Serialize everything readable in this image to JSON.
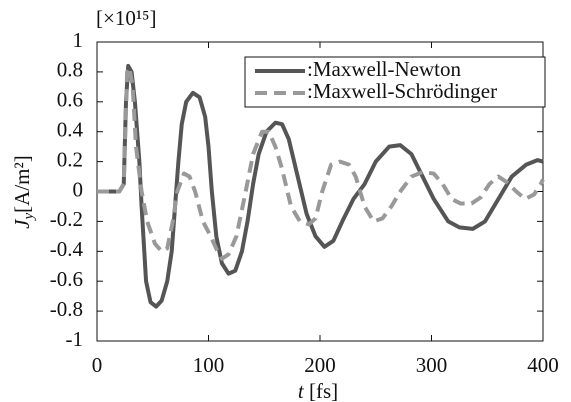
{
  "chart_data": {
    "type": "line",
    "multiplier": "[×10¹⁵]",
    "xlabel": {
      "symbol": "t",
      "unit": "[fs]"
    },
    "ylabel": {
      "symbol": "J",
      "subscript": "y",
      "unit": "[A/m²]"
    },
    "xlim": [
      0,
      400
    ],
    "xticks": [
      0,
      100,
      200,
      300,
      400
    ],
    "ylim": [
      -1,
      1
    ],
    "yticks": [
      -1,
      -0.8,
      -0.6,
      -0.4,
      -0.2,
      0,
      0.2,
      0.4,
      0.6,
      0.8,
      1
    ],
    "legend": "top-right",
    "series": [
      {
        "name": ":Maxwell-Newton",
        "color": "#555555",
        "dash": "solid",
        "x": [
          0,
          20,
          24,
          26,
          28,
          31,
          34,
          38,
          40,
          44,
          48,
          53,
          58,
          63,
          67,
          70,
          73,
          76,
          80,
          86,
          92,
          97,
          100,
          103,
          107,
          112,
          118,
          124,
          130,
          135,
          140,
          145,
          152,
          160,
          166,
          172,
          180,
          188,
          196,
          204,
          212,
          220,
          230,
          240,
          250,
          262,
          272,
          282,
          292,
          302,
          315,
          325,
          337,
          348,
          360,
          372,
          385,
          395,
          400
        ],
        "values": [
          0,
          0,
          0.05,
          0.6,
          0.84,
          0.8,
          0.6,
          0.2,
          -0.1,
          -0.6,
          -0.74,
          -0.77,
          -0.73,
          -0.6,
          -0.4,
          -0.1,
          0.2,
          0.45,
          0.6,
          0.66,
          0.63,
          0.5,
          0.3,
          0,
          -0.3,
          -0.48,
          -0.55,
          -0.53,
          -0.4,
          -0.2,
          0.05,
          0.25,
          0.4,
          0.46,
          0.45,
          0.35,
          0.1,
          -0.15,
          -0.3,
          -0.37,
          -0.33,
          -0.2,
          -0.05,
          0.05,
          0.2,
          0.3,
          0.31,
          0.25,
          0.1,
          -0.05,
          -0.2,
          -0.24,
          -0.25,
          -0.2,
          -0.05,
          0.1,
          0.18,
          0.21,
          0.2
        ]
      },
      {
        "name": ":Maxwell-Schrödinger",
        "color": "#999999",
        "dash": "dashed",
        "x": [
          0,
          20,
          24,
          27,
          29,
          32,
          35,
          40,
          45,
          52,
          58,
          63,
          68,
          72,
          78,
          83,
          88,
          95,
          102,
          108,
          112,
          118,
          125,
          132,
          140,
          148,
          154,
          160,
          166,
          174,
          182,
          190,
          196,
          202,
          210,
          218,
          226,
          232,
          240,
          248,
          256,
          264,
          272,
          282,
          292,
          302,
          310,
          318,
          326,
          336,
          344,
          352,
          360,
          368,
          376,
          384,
          392,
          398,
          400
        ],
        "values": [
          0,
          0,
          0.05,
          0.8,
          0.83,
          0.7,
          0.3,
          0,
          -0.2,
          -0.35,
          -0.4,
          -0.38,
          -0.2,
          0,
          0.12,
          0.1,
          0,
          -0.2,
          -0.3,
          -0.4,
          -0.45,
          -0.42,
          -0.3,
          -0.05,
          0.25,
          0.4,
          0.4,
          0.3,
          0.15,
          -0.1,
          -0.2,
          -0.22,
          -0.18,
          0,
          0.18,
          0.2,
          0.18,
          0.1,
          -0.1,
          -0.2,
          -0.18,
          -0.1,
          0,
          0.1,
          0.13,
          0.12,
          0.05,
          -0.05,
          -0.08,
          -0.08,
          -0.04,
          0.05,
          0.1,
          0.06,
          0,
          -0.05,
          -0.02,
          0.05,
          0.08
        ]
      }
    ]
  }
}
